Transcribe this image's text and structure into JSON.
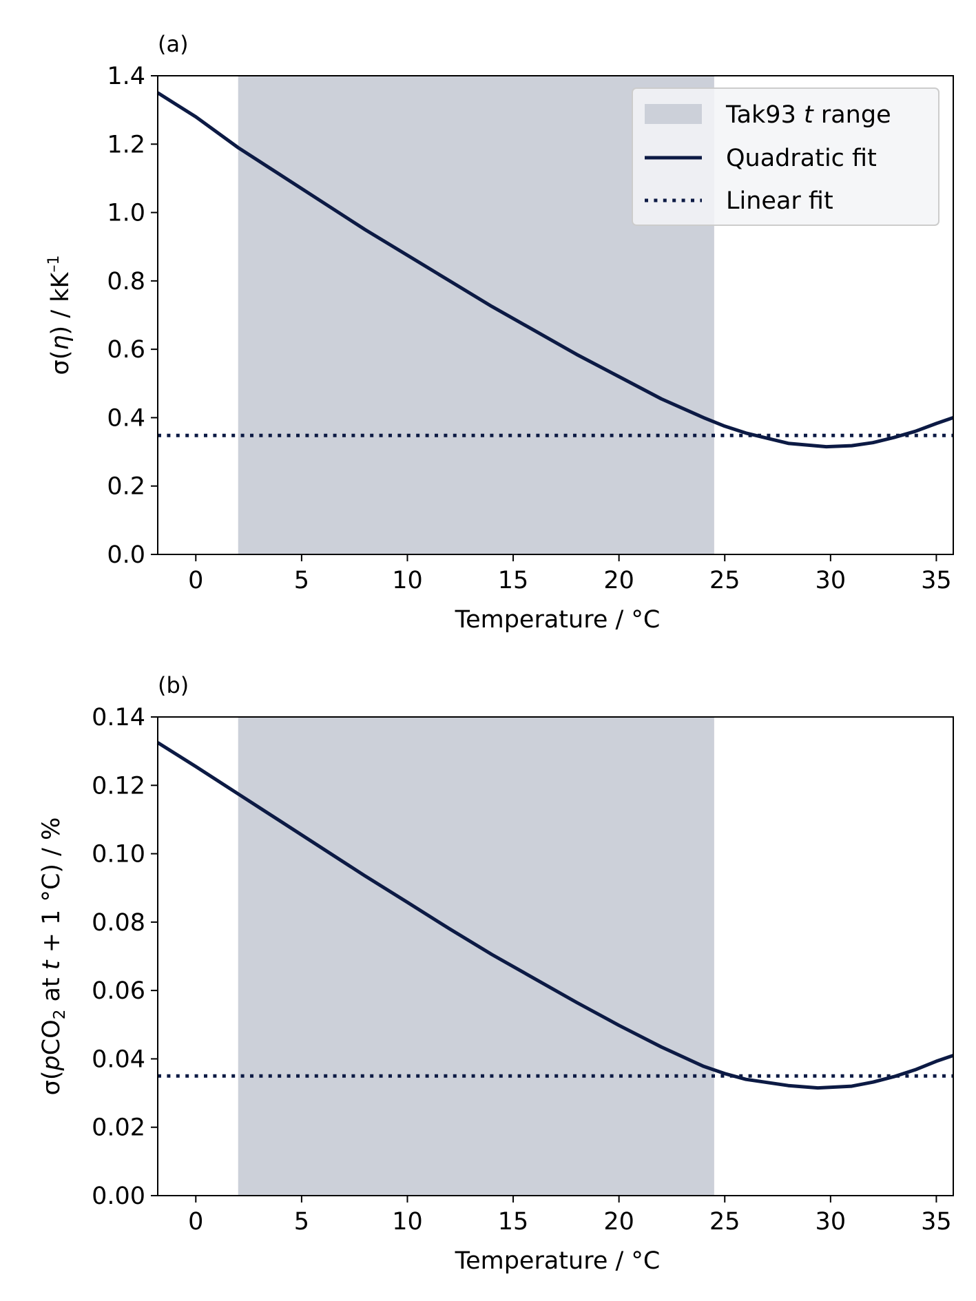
{
  "colors": {
    "line": "#0c1a44",
    "shade": "#ccd0d9",
    "legend_bg": "#f3f4f7",
    "legend_border": "#cccccc",
    "axis": "#000000"
  },
  "legend": {
    "placement": "top-right",
    "entries": [
      {
        "label": "Tak93 ",
        "label_italic": "t",
        "label_tail": " range",
        "kind": "patch"
      },
      {
        "label": "Quadratic fit",
        "kind": "solid"
      },
      {
        "label": "Linear fit",
        "kind": "dotted"
      }
    ]
  },
  "chart_data": [
    {
      "panel_label": "(a)",
      "type": "line",
      "xlabel": "Temperature / °C",
      "ylabel_parts": {
        "sigma": "σ(",
        "eta": "η",
        "close": ") / kK",
        "sup": "–1"
      },
      "xlim": [
        -1.8,
        35.8
      ],
      "ylim": [
        0,
        1.4
      ],
      "xticks": [
        0,
        5,
        10,
        15,
        20,
        25,
        30,
        35
      ],
      "yticks": [
        "0.0",
        "0.2",
        "0.4",
        "0.6",
        "0.8",
        "1.0",
        "1.2",
        "1.4"
      ],
      "shaded_range": [
        2,
        24.5
      ],
      "series": [
        {
          "style": "solid",
          "x": [
            -1.8,
            0,
            2,
            4,
            6,
            8,
            10,
            12,
            14,
            16,
            18,
            20,
            22,
            24,
            25,
            26,
            28,
            29.8,
            31,
            32,
            33,
            34,
            35,
            35.8
          ],
          "y": [
            1.35,
            1.28,
            1.19,
            1.11,
            1.03,
            0.95,
            0.875,
            0.8,
            0.725,
            0.655,
            0.585,
            0.52,
            0.455,
            0.4,
            0.375,
            0.355,
            0.325,
            0.315,
            0.318,
            0.327,
            0.342,
            0.36,
            0.383,
            0.4
          ]
        },
        {
          "style": "dotted",
          "x": [
            -1.8,
            35.8
          ],
          "y": [
            0.348,
            0.348
          ]
        }
      ]
    },
    {
      "panel_label": "(b)",
      "type": "line",
      "xlabel": "Temperature / °C",
      "ylabel_parts": {
        "sigma": "σ(",
        "p": "p",
        "co": "CO",
        "sub": "2",
        "at": " at ",
        "t": "t",
        "tail": " + 1 °C) / %"
      },
      "xlim": [
        -1.8,
        35.8
      ],
      "ylim": [
        0,
        0.14
      ],
      "xticks": [
        0,
        5,
        10,
        15,
        20,
        25,
        30,
        35
      ],
      "yticks": [
        "0.00",
        "0.02",
        "0.04",
        "0.06",
        "0.08",
        "0.10",
        "0.12",
        "0.14"
      ],
      "shaded_range": [
        2,
        24.5
      ],
      "series": [
        {
          "style": "solid",
          "x": [
            -1.8,
            0,
            2,
            4,
            6,
            8,
            10,
            12,
            14,
            16,
            18,
            20,
            22,
            24,
            25,
            26,
            28,
            29.4,
            31,
            32,
            33,
            34,
            35,
            35.8
          ],
          "y": [
            0.1325,
            0.1255,
            0.1175,
            0.1095,
            0.1015,
            0.0935,
            0.0858,
            0.078,
            0.0705,
            0.0635,
            0.0565,
            0.0498,
            0.0435,
            0.0378,
            0.0357,
            0.034,
            0.0322,
            0.0315,
            0.032,
            0.0332,
            0.0348,
            0.0368,
            0.0393,
            0.041
          ]
        },
        {
          "style": "dotted",
          "x": [
            -1.8,
            35.8
          ],
          "y": [
            0.035,
            0.035
          ]
        }
      ]
    }
  ]
}
